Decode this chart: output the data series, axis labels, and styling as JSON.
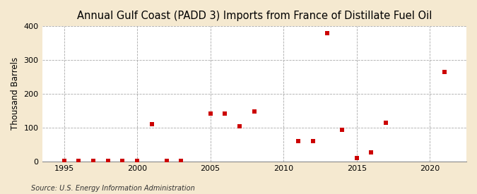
{
  "title": "Annual Gulf Coast (PADD 3) Imports from France of Distillate Fuel Oil",
  "ylabel": "Thousand Barrels",
  "source": "Source: U.S. Energy Information Administration",
  "xlim": [
    1993.5,
    2022.5
  ],
  "ylim": [
    0,
    400
  ],
  "yticks": [
    0,
    100,
    200,
    300,
    400
  ],
  "xticks": [
    1995,
    2000,
    2005,
    2010,
    2015,
    2020
  ],
  "data": {
    "1995": 2,
    "1996": 2,
    "1997": 2,
    "1998": 2,
    "1999": 2,
    "2000": 2,
    "2001": 110,
    "2002": 2,
    "2003": 2,
    "2005": 140,
    "2006": 140,
    "2007": 103,
    "2008": 148,
    "2011": 60,
    "2012": 60,
    "2013": 378,
    "2014": 93,
    "2015": 10,
    "2016": 27,
    "2017": 114,
    "2021": 263
  },
  "marker_color": "#cc0000",
  "marker_size": 25,
  "plot_bg_color": "#ffffff",
  "fig_bg_color": "#f5e9d0",
  "grid_color": "#aaaaaa",
  "title_fontsize": 10.5,
  "label_fontsize": 8.5,
  "tick_fontsize": 8,
  "source_fontsize": 7
}
